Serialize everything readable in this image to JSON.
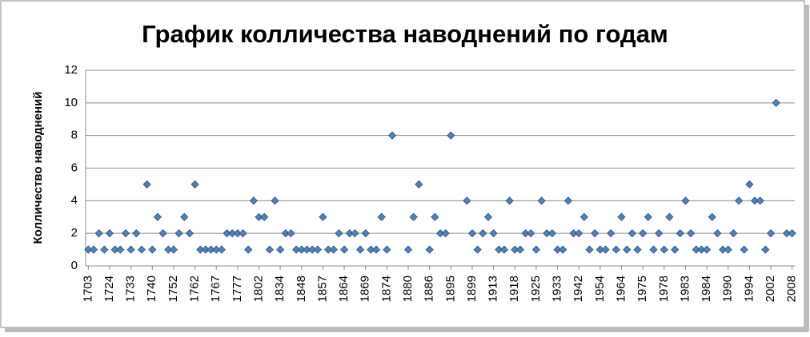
{
  "chart_data": {
    "type": "scatter",
    "title": "График колличества наводнений по годам",
    "y_label": "Колличество наводнений",
    "categories": [
      "1703",
      null,
      null,
      null,
      "1724",
      null,
      null,
      null,
      "1733",
      null,
      null,
      null,
      "1740",
      null,
      null,
      null,
      "1752",
      null,
      null,
      null,
      "1762",
      null,
      null,
      null,
      "1767",
      null,
      null,
      null,
      "1777",
      null,
      null,
      null,
      "1802",
      null,
      null,
      null,
      "1834",
      null,
      null,
      null,
      "1848",
      null,
      null,
      null,
      "1857",
      null,
      null,
      null,
      "1864",
      null,
      null,
      null,
      "1869",
      null,
      null,
      null,
      "1874",
      null,
      null,
      null,
      "1880",
      null,
      null,
      null,
      "1886",
      null,
      null,
      null,
      "1895",
      null,
      null,
      null,
      "1899",
      null,
      null,
      null,
      "1913",
      null,
      null,
      null,
      "1918",
      null,
      null,
      null,
      "1925",
      null,
      null,
      null,
      "1933",
      null,
      null,
      null,
      "1942",
      null,
      null,
      null,
      "1954",
      null,
      null,
      null,
      "1964",
      null,
      null,
      null,
      "1975",
      null,
      null,
      null,
      "1978",
      null,
      null,
      null,
      "1983",
      null,
      null,
      null,
      "1984",
      null,
      null,
      null,
      "1990",
      null,
      null,
      null,
      "1994",
      null,
      null,
      null,
      "2002",
      null,
      null,
      null,
      "2008"
    ],
    "values": [
      1,
      1,
      2,
      1,
      2,
      1,
      1,
      2,
      1,
      2,
      1,
      5,
      1,
      3,
      2,
      1,
      1,
      2,
      3,
      2,
      5,
      1,
      1,
      1,
      1,
      1,
      2,
      2,
      2,
      2,
      1,
      4,
      3,
      3,
      1,
      4,
      1,
      2,
      2,
      1,
      1,
      1,
      1,
      1,
      3,
      1,
      1,
      2,
      1,
      2,
      2,
      1,
      2,
      1,
      1,
      3,
      1,
      8,
      null,
      null,
      1,
      3,
      5,
      null,
      1,
      3,
      2,
      2,
      8,
      null,
      null,
      4,
      2,
      1,
      2,
      3,
      2,
      1,
      1,
      4,
      1,
      1,
      2,
      2,
      1,
      4,
      2,
      2,
      1,
      1,
      4,
      2,
      2,
      3,
      1,
      2,
      1,
      1,
      2,
      1,
      3,
      1,
      2,
      1,
      2,
      3,
      1,
      2,
      1,
      3,
      1,
      2,
      4,
      2,
      1,
      1,
      1,
      3,
      2,
      1,
      1,
      2,
      4,
      1,
      5,
      4,
      4,
      1,
      2,
      10,
      null,
      2,
      2
    ],
    "color": "#4f81bd",
    "ylim": [
      0,
      12
    ],
    "yticks": [
      0,
      2,
      4,
      6,
      8,
      10,
      12
    ],
    "grid": true
  }
}
